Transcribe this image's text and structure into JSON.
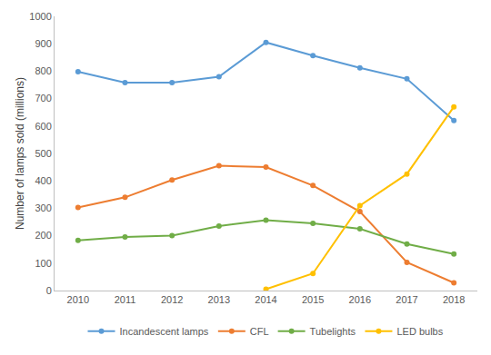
{
  "chart_data": {
    "type": "line",
    "y_label": "Number of lamps sold (millions)",
    "categories": [
      "2010",
      "2011",
      "2012",
      "2013",
      "2014",
      "2015",
      "2016",
      "2017",
      "2018"
    ],
    "series": [
      {
        "name": "Incandescent lamps",
        "color": "#5b9bd5",
        "values": [
          798,
          758,
          758,
          780,
          905,
          857,
          812,
          772,
          620
        ]
      },
      {
        "name": "CFL",
        "color": "#ed7d31",
        "values": [
          303,
          340,
          403,
          455,
          450,
          383,
          288,
          103,
          28
        ]
      },
      {
        "name": "Tubelights",
        "color": "#70ad47",
        "values": [
          183,
          195,
          200,
          235,
          257,
          245,
          225,
          170,
          133
        ]
      },
      {
        "name": "LED bulbs",
        "color": "#ffc000",
        "values": [
          null,
          null,
          null,
          null,
          5,
          62,
          310,
          425,
          670
        ]
      }
    ],
    "ylim": [
      0,
      1000
    ],
    "yticks": [
      0,
      100,
      200,
      300,
      400,
      500,
      600,
      700,
      800,
      900,
      1000
    ],
    "grid": false,
    "legend": "bottom",
    "marker": "circle",
    "line_style": "solid"
  }
}
